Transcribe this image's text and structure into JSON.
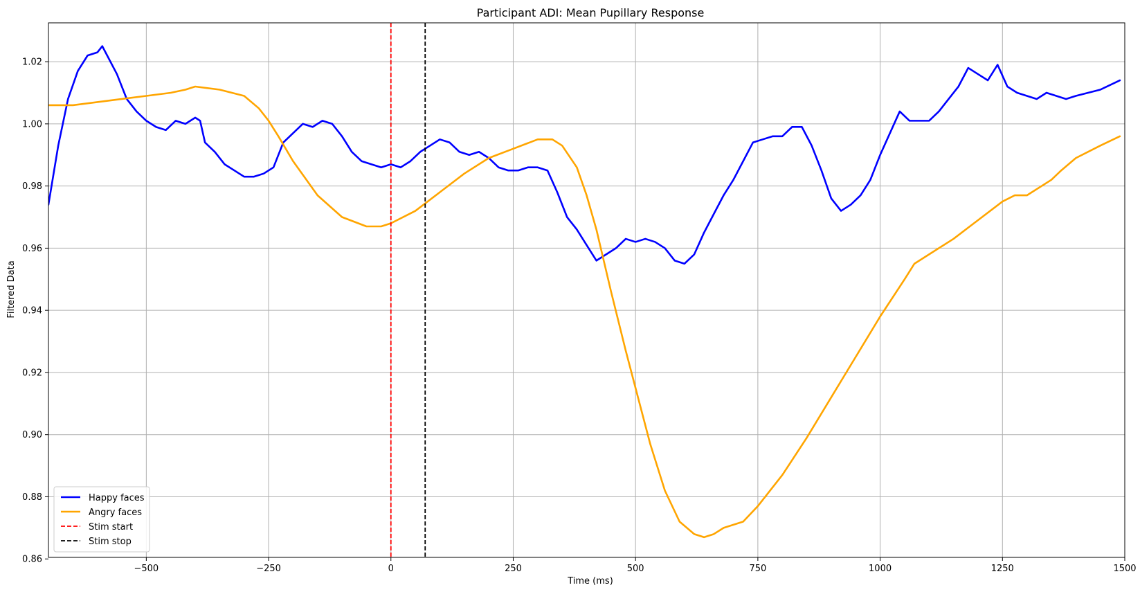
{
  "chart_data": {
    "type": "line",
    "title": "Participant ADI: Mean Pupillary Response",
    "xlabel": "Time (ms)",
    "ylabel": "Filtered Data",
    "xlim": [
      -700,
      1500
    ],
    "ylim": [
      0.8605,
      1.0325
    ],
    "xticks": [
      -500,
      -250,
      0,
      250,
      500,
      750,
      1000,
      1250,
      1500
    ],
    "xtick_labels": [
      "−500",
      "−250",
      "0",
      "250",
      "500",
      "750",
      "1000",
      "1250",
      "1500"
    ],
    "yticks": [
      0.86,
      0.88,
      0.9,
      0.92,
      0.94,
      0.96,
      0.98,
      1.0,
      1.02
    ],
    "ytick_labels": [
      "0.86",
      "0.88",
      "0.90",
      "0.92",
      "0.94",
      "0.96",
      "0.98",
      "1.00",
      "1.02"
    ],
    "grid": true,
    "legend_position": "lower-left",
    "series": [
      {
        "name": "Happy faces",
        "color": "#0000ff",
        "style": "solid",
        "x": [
          -700,
          -680,
          -660,
          -640,
          -620,
          -600,
          -590,
          -580,
          -560,
          -540,
          -520,
          -500,
          -480,
          -460,
          -440,
          -420,
          -400,
          -390,
          -380,
          -360,
          -340,
          -320,
          -300,
          -280,
          -260,
          -240,
          -220,
          -200,
          -180,
          -160,
          -140,
          -120,
          -100,
          -80,
          -60,
          -40,
          -20,
          0,
          20,
          40,
          60,
          80,
          100,
          120,
          140,
          160,
          180,
          200,
          220,
          240,
          260,
          280,
          300,
          320,
          340,
          360,
          380,
          400,
          420,
          440,
          460,
          480,
          500,
          520,
          540,
          560,
          580,
          600,
          620,
          640,
          660,
          680,
          700,
          720,
          740,
          760,
          780,
          800,
          820,
          840,
          860,
          880,
          900,
          920,
          940,
          960,
          980,
          1000,
          1020,
          1040,
          1060,
          1080,
          1100,
          1120,
          1140,
          1160,
          1180,
          1200,
          1220,
          1240,
          1260,
          1280,
          1300,
          1320,
          1340,
          1360,
          1380,
          1400,
          1450,
          1490
        ],
        "y": [
          0.974,
          0.993,
          1.008,
          1.017,
          1.022,
          1.023,
          1.025,
          1.022,
          1.016,
          1.008,
          1.004,
          1.001,
          0.999,
          0.998,
          1.001,
          1.0,
          1.002,
          1.001,
          0.994,
          0.991,
          0.987,
          0.985,
          0.983,
          0.983,
          0.984,
          0.986,
          0.994,
          0.997,
          1.0,
          0.999,
          1.001,
          1.0,
          0.996,
          0.991,
          0.988,
          0.987,
          0.986,
          0.987,
          0.986,
          0.988,
          0.991,
          0.993,
          0.995,
          0.994,
          0.991,
          0.99,
          0.991,
          0.989,
          0.986,
          0.985,
          0.985,
          0.986,
          0.986,
          0.985,
          0.978,
          0.97,
          0.966,
          0.961,
          0.956,
          0.958,
          0.96,
          0.963,
          0.962,
          0.963,
          0.962,
          0.96,
          0.956,
          0.955,
          0.958,
          0.965,
          0.971,
          0.977,
          0.982,
          0.988,
          0.994,
          0.995,
          0.996,
          0.996,
          0.999,
          0.999,
          0.993,
          0.985,
          0.976,
          0.972,
          0.974,
          0.977,
          0.982,
          0.99,
          0.997,
          1.004,
          1.001,
          1.001,
          1.001,
          1.004,
          1.008,
          1.012,
          1.018,
          1.016,
          1.014,
          1.019,
          1.012,
          1.01,
          1.009,
          1.008,
          1.01,
          1.009,
          1.008,
          1.009,
          1.011,
          1.014
        ]
      },
      {
        "name": "Angry faces",
        "color": "#ffa500",
        "style": "solid",
        "x": [
          -700,
          -650,
          -600,
          -550,
          -500,
          -450,
          -420,
          -400,
          -350,
          -300,
          -270,
          -250,
          -230,
          -200,
          -150,
          -100,
          -50,
          -20,
          0,
          50,
          100,
          150,
          200,
          250,
          300,
          330,
          350,
          380,
          400,
          420,
          450,
          480,
          500,
          530,
          560,
          590,
          620,
          640,
          660,
          680,
          700,
          720,
          750,
          800,
          850,
          900,
          950,
          1000,
          1050,
          1070,
          1100,
          1150,
          1200,
          1250,
          1275,
          1300,
          1350,
          1370,
          1400,
          1450,
          1490
        ],
        "y": [
          1.006,
          1.006,
          1.007,
          1.008,
          1.009,
          1.01,
          1.011,
          1.012,
          1.011,
          1.009,
          1.005,
          1.001,
          0.996,
          0.988,
          0.977,
          0.97,
          0.967,
          0.967,
          0.968,
          0.972,
          0.978,
          0.984,
          0.989,
          0.992,
          0.995,
          0.995,
          0.993,
          0.986,
          0.977,
          0.966,
          0.946,
          0.927,
          0.915,
          0.897,
          0.882,
          0.872,
          0.868,
          0.867,
          0.868,
          0.87,
          0.871,
          0.872,
          0.877,
          0.887,
          0.899,
          0.912,
          0.925,
          0.938,
          0.95,
          0.955,
          0.958,
          0.963,
          0.969,
          0.975,
          0.977,
          0.977,
          0.982,
          0.985,
          0.989,
          0.993,
          0.996
        ]
      }
    ],
    "vlines": [
      {
        "name": "Stim start",
        "x": 0,
        "color": "#ff0000",
        "style": "dashed"
      },
      {
        "name": "Stim stop",
        "x": 70,
        "color": "#000000",
        "style": "dashed"
      }
    ]
  }
}
